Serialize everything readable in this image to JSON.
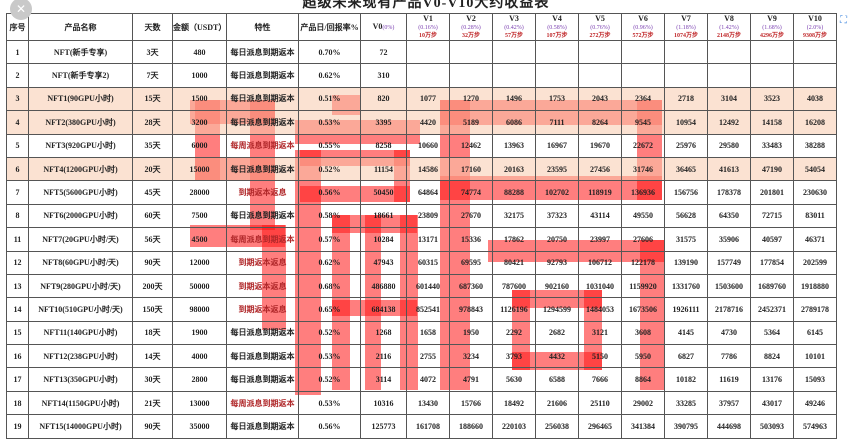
{
  "title": "超级未来现有产品V0-V10大约收益表",
  "overlay_text": "骗局",
  "colors": {
    "peach_row": "#f8cbad",
    "overlay_red": "#ff1414",
    "rate_purple": "#7a3fb0",
    "steps_red": "#c0282a"
  },
  "icons": {
    "close": "close-icon",
    "expand": "expand-icon"
  },
  "headers": {
    "index": "序号",
    "name": "产品名称",
    "days": "天数",
    "amount": "金额（USDT）",
    "feature": "特性",
    "rate": "产品日/回报率%",
    "v0": "V0",
    "v0_pct": "(0%)",
    "levels": [
      {
        "label": "V1",
        "rate": "(0.16%)",
        "steps": "10万步"
      },
      {
        "label": "V2",
        "rate": "(0.28%)",
        "steps": "32万步"
      },
      {
        "label": "V3",
        "rate": "(0.42%)",
        "steps": "57万步"
      },
      {
        "label": "V4",
        "rate": "(0.58%)",
        "steps": "107万步"
      },
      {
        "label": "V5",
        "rate": "(0.76%)",
        "steps": "272万步"
      },
      {
        "label": "V6",
        "rate": "(0.96%)",
        "steps": "572万步"
      },
      {
        "label": "V7",
        "rate": "(1.18%)",
        "steps": "1074万步"
      },
      {
        "label": "V8",
        "rate": "(1.42%)",
        "steps": "2148万步"
      },
      {
        "label": "V9",
        "rate": "(1.68%)",
        "steps": "4296万步"
      },
      {
        "label": "V10",
        "rate": "(2.0%)",
        "steps": "9308万步"
      }
    ]
  },
  "rows": [
    {
      "index": "1",
      "name": "NFT(新手专享)",
      "days": "3天",
      "amount": "480",
      "feature": "每日派息到期返本",
      "rate": "0.70%",
      "v": [
        "72",
        "",
        "",
        "",
        "",
        "",
        "",
        "",
        "",
        "",
        ""
      ],
      "highlight": false,
      "feature_red": false
    },
    {
      "index": "2",
      "name": "NFT(新手专享2)",
      "days": "7天",
      "amount": "1000",
      "feature": "每日派息到期返本",
      "rate": "0.62%",
      "v": [
        "310",
        "",
        "",
        "",
        "",
        "",
        "",
        "",
        "",
        "",
        ""
      ],
      "highlight": false,
      "feature_red": false
    },
    {
      "index": "3",
      "name": "NFT1(90GPU小时)",
      "days": "15天",
      "amount": "1500",
      "feature": "每日派息到期返本",
      "rate": "0.51%",
      "v": [
        "820",
        "1077",
        "1270",
        "1496",
        "1753",
        "2043",
        "2364",
        "2718",
        "3104",
        "3523",
        "4038"
      ],
      "highlight": true,
      "feature_red": false
    },
    {
      "index": "4",
      "name": "NFT2(380GPU小时)",
      "days": "28天",
      "amount": "3200",
      "feature": "每日派息到期返本",
      "rate": "0.53%",
      "v": [
        "3395",
        "4420",
        "5189",
        "6086",
        "7111",
        "8264",
        "9545",
        "10954",
        "12492",
        "14158",
        "16208"
      ],
      "highlight": true,
      "feature_red": false
    },
    {
      "index": "5",
      "name": "NFT3(920GPU小时)",
      "days": "35天",
      "amount": "6000",
      "feature": "每周派息到期返本",
      "rate": "0.55%",
      "v": [
        "8258",
        "10660",
        "12462",
        "13963",
        "16967",
        "19670",
        "22672",
        "25976",
        "29580",
        "33483",
        "38288"
      ],
      "highlight": false,
      "feature_red": true
    },
    {
      "index": "6",
      "name": "NFT4(1200GPU小时)",
      "days": "20天",
      "amount": "15000",
      "feature": "每日派息到期返本",
      "rate": "0.52%",
      "v": [
        "11154",
        "14586",
        "17160",
        "20163",
        "23595",
        "27456",
        "31746",
        "36465",
        "41613",
        "47190",
        "54054"
      ],
      "highlight": true,
      "feature_red": false
    },
    {
      "index": "7",
      "name": "NFT5(5600GPU小时)",
      "days": "45天",
      "amount": "28000",
      "feature": "到期返本返息",
      "rate": "0.56%",
      "v": [
        "50450",
        "64864",
        "74774",
        "88288",
        "102702",
        "118919",
        "136936",
        "156756",
        "178378",
        "201801",
        "230630"
      ],
      "highlight": false,
      "feature_red": true
    },
    {
      "index": "8",
      "name": "NFT6(2000GPU小时)",
      "days": "60天",
      "amount": "7500",
      "feature": "每日派息到期返本",
      "rate": "0.58%",
      "v": [
        "18661",
        "23809",
        "27670",
        "32175",
        "37323",
        "43114",
        "49550",
        "56628",
        "64350",
        "72715",
        "83011"
      ],
      "highlight": false,
      "feature_red": false
    },
    {
      "index": "11",
      "name": "NFT7(20GPU小时/天)",
      "days": "56天",
      "amount": "4500",
      "feature": "每周派息到期返本",
      "rate": "0.57%",
      "v": [
        "10284",
        "13171",
        "15336",
        "17862",
        "20750",
        "23997",
        "27606",
        "31575",
        "35906",
        "40597",
        "46371"
      ],
      "highlight": false,
      "feature_red": true
    },
    {
      "index": "12",
      "name": "NFT8(60GPU小时/天)",
      "days": "90天",
      "amount": "12000",
      "feature": "到期返本返息",
      "rate": "0.62%",
      "v": [
        "47943",
        "60315",
        "69595",
        "80421",
        "92793",
        "106712",
        "122178",
        "139190",
        "157749",
        "177854",
        "202599"
      ],
      "highlight": false,
      "feature_red": true
    },
    {
      "index": "13",
      "name": "NFT9(280GPU小时/天)",
      "days": "200天",
      "amount": "50000",
      "feature": "到期返本返息",
      "rate": "0.68%",
      "v": [
        "486880",
        "601440",
        "687360",
        "787600",
        "902160",
        "1031040",
        "1159920",
        "1331760",
        "1503600",
        "1689760",
        "1918880"
      ],
      "highlight": false,
      "feature_red": true
    },
    {
      "index": "14",
      "name": "NFT10(510GPU小时/天)",
      "days": "150天",
      "amount": "98000",
      "feature": "到期返本返息",
      "rate": "0.65%",
      "v": [
        "684138",
        "852541",
        "978843",
        "1126196",
        "1294599",
        "1484053",
        "1673506",
        "1926111",
        "2178716",
        "2452371",
        "2789178"
      ],
      "highlight": false,
      "feature_red": true
    },
    {
      "index": "15",
      "name": "NFT11(140GPU小时)",
      "days": "18天",
      "amount": "1900",
      "feature": "每日派息到期返本",
      "rate": "0.52%",
      "v": [
        "1268",
        "1658",
        "1950",
        "2292",
        "2682",
        "3121",
        "3608",
        "4145",
        "4730",
        "5364",
        "6145"
      ],
      "highlight": false,
      "feature_red": false
    },
    {
      "index": "16",
      "name": "NFT12(238GPU小时)",
      "days": "14天",
      "amount": "4000",
      "feature": "每日派息到期返本",
      "rate": "0.53%",
      "v": [
        "2116",
        "2755",
        "3234",
        "3793",
        "4432",
        "5150",
        "5950",
        "6827",
        "7786",
        "8824",
        "10101"
      ],
      "highlight": false,
      "feature_red": false
    },
    {
      "index": "17",
      "name": "NFT13(350GPU小时)",
      "days": "30天",
      "amount": "2800",
      "feature": "每日派息到期返本",
      "rate": "0.52%",
      "v": [
        "3114",
        "4072",
        "4791",
        "5630",
        "6588",
        "7666",
        "8864",
        "10182",
        "11619",
        "13176",
        "15093"
      ],
      "highlight": false,
      "feature_red": false
    },
    {
      "index": "18",
      "name": "NFT14(1150GPU小时)",
      "days": "21天",
      "amount": "13000",
      "feature": "每周派息到期返本",
      "rate": "0.53%",
      "v": [
        "10316",
        "13430",
        "15766",
        "18492",
        "21606",
        "25110",
        "29002",
        "33285",
        "37957",
        "43017",
        "49246"
      ],
      "highlight": false,
      "feature_red": true
    },
    {
      "index": "19",
      "name": "NFT15(14000GPU小时)",
      "days": "90天",
      "amount": "35000",
      "feature": "每日派息到期返本",
      "rate": "0.56%",
      "v": [
        "125773",
        "161708",
        "188660",
        "220103",
        "256038",
        "296465",
        "341384",
        "390795",
        "444698",
        "503093",
        "574963"
      ],
      "highlight": false,
      "feature_red": false
    }
  ]
}
